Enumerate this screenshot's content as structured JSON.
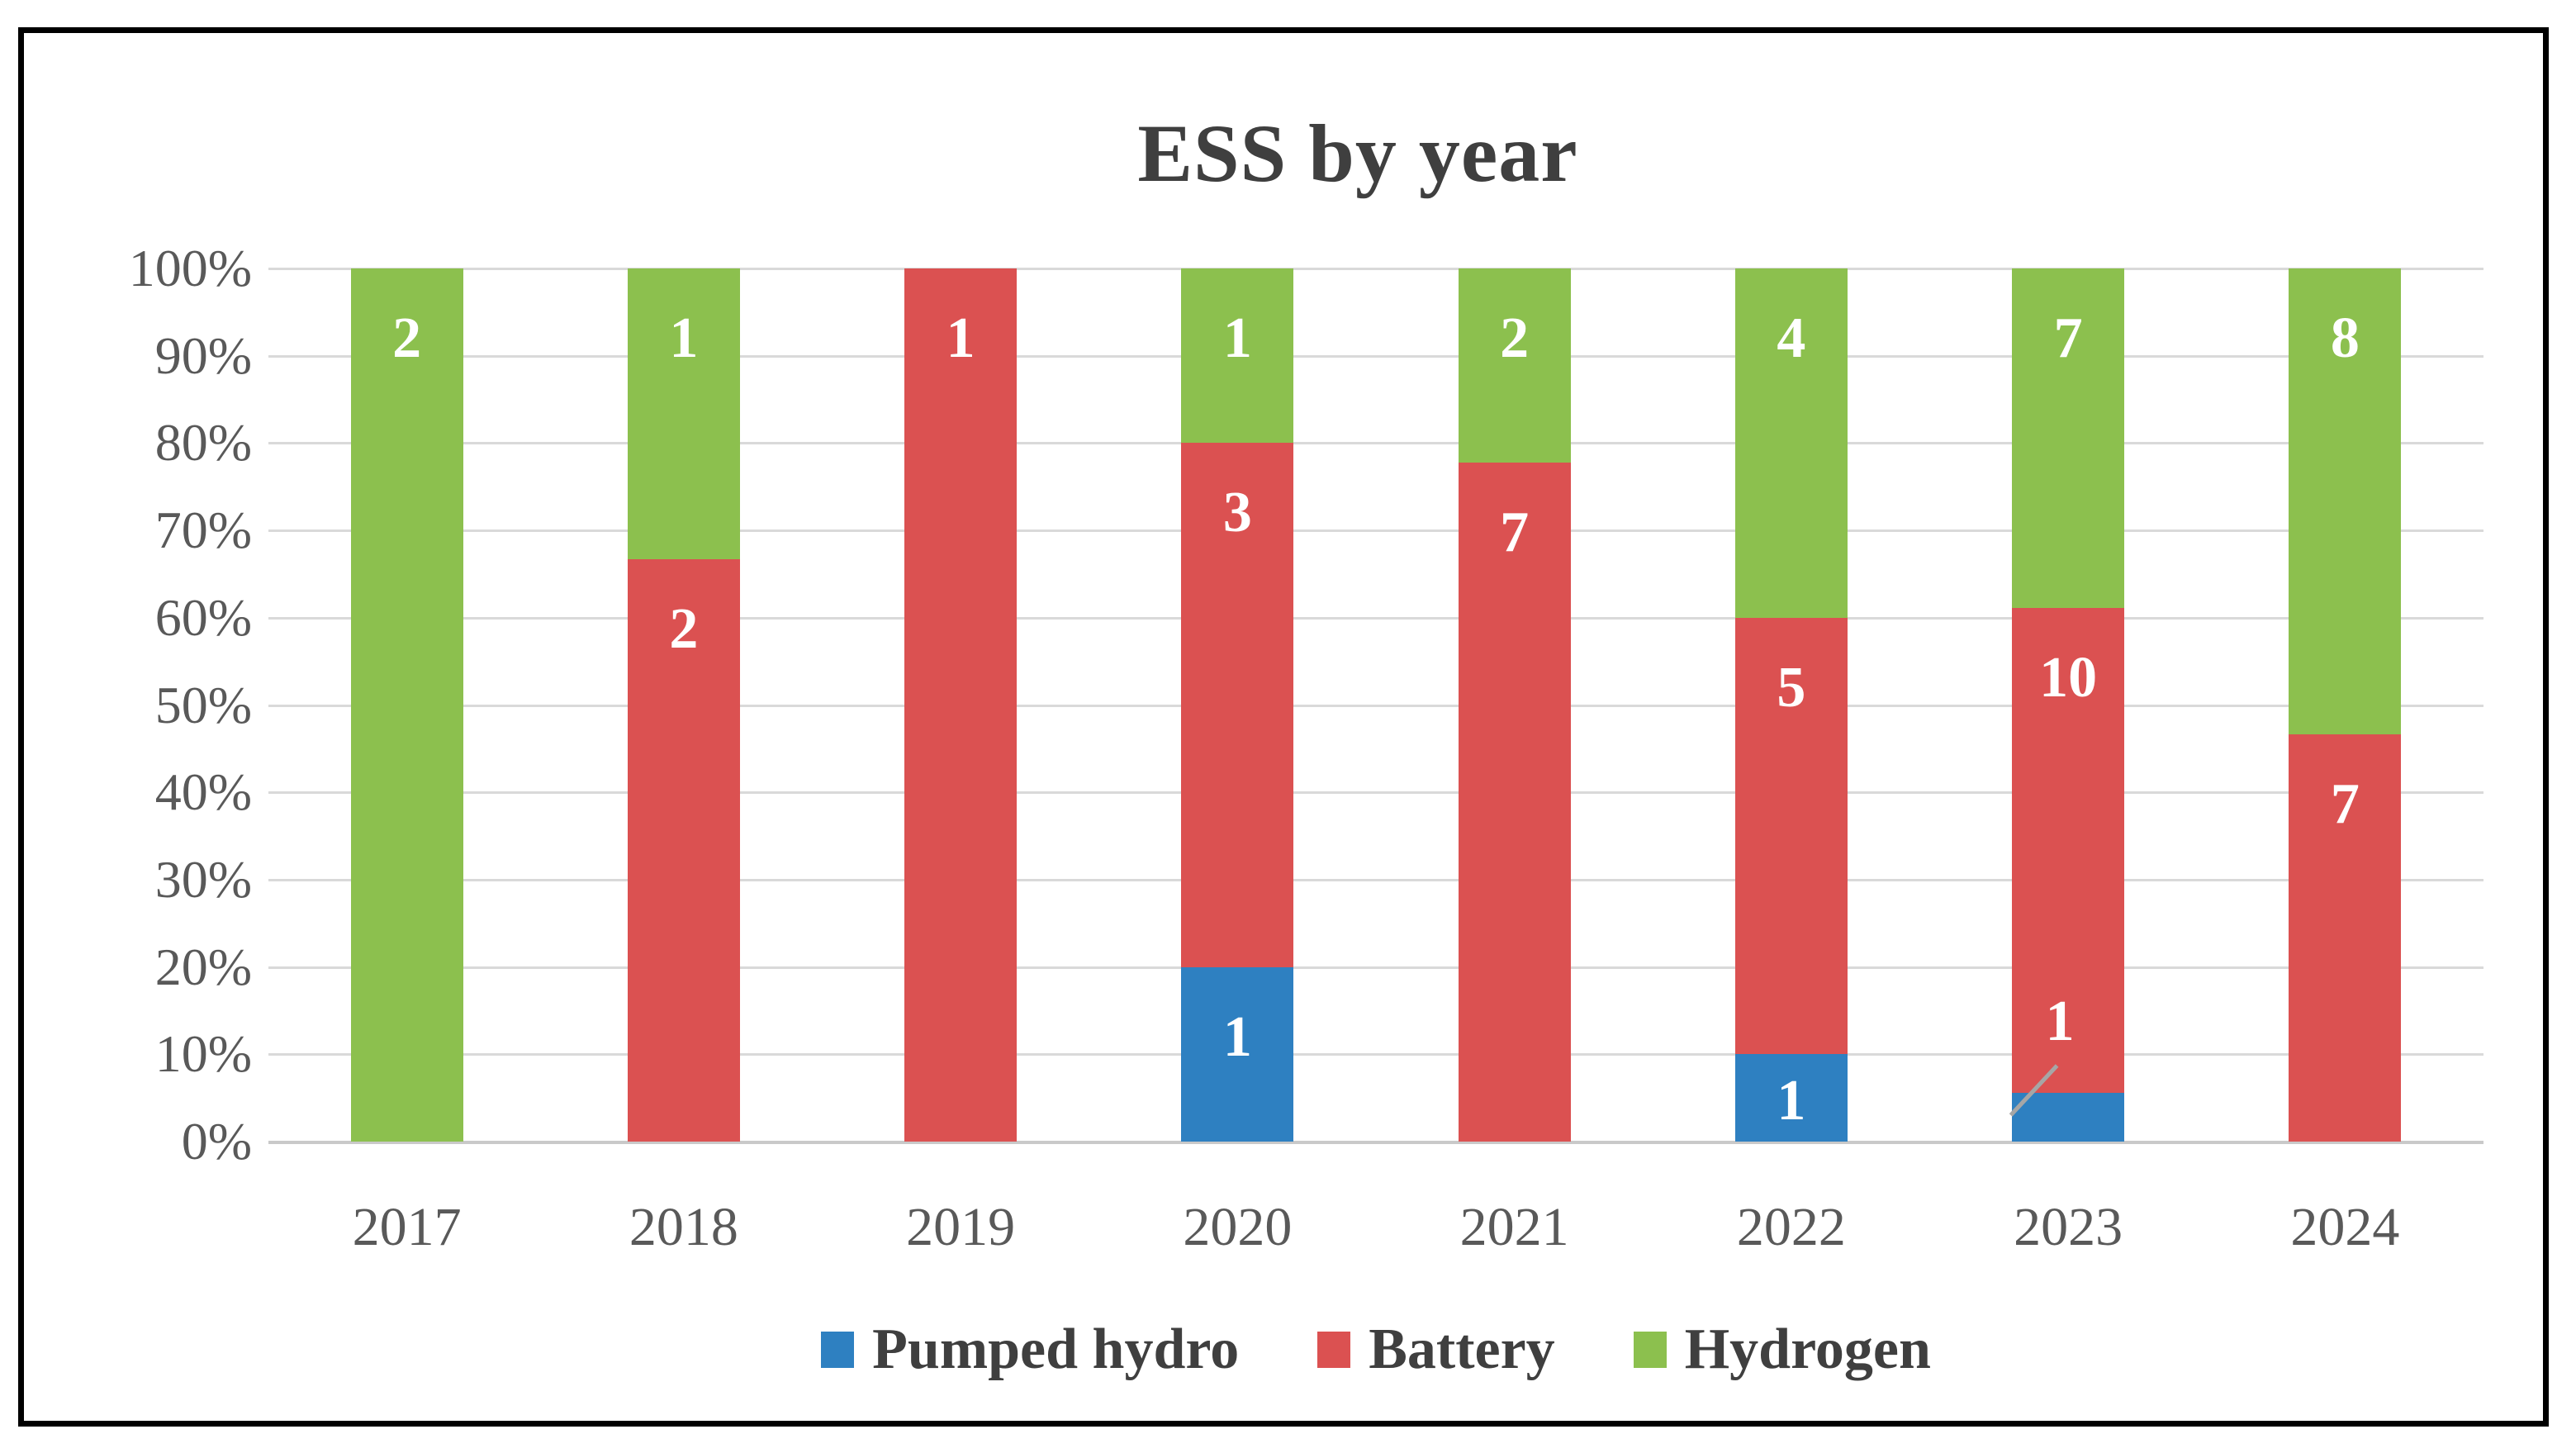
{
  "styles": {
    "frame_border": "#000000",
    "gridline": "#D9D9D9",
    "axis_line": "#C9C9C9",
    "title_text": "#3F3F3F",
    "tick_text": "#595959",
    "data_label_text": "#FFFFFF",
    "leader_line": "#A6A6A6",
    "background": "#FFFFFF"
  },
  "chart_data": {
    "type": "bar",
    "subtype": "stacked-100-percent-column",
    "title": "ESS by year",
    "categories": [
      "2017",
      "2018",
      "2019",
      "2020",
      "2021",
      "2022",
      "2023",
      "2024"
    ],
    "series": [
      {
        "name": "Pumped hydro",
        "color": "#2E80C1",
        "values": [
          0,
          0,
          0,
          1,
          0,
          1,
          1,
          0
        ]
      },
      {
        "name": "Battery",
        "color": "#DB5151",
        "values": [
          0,
          2,
          1,
          3,
          7,
          5,
          10,
          7
        ]
      },
      {
        "name": "Hydrogen",
        "color": "#8CC04E",
        "values": [
          2,
          1,
          0,
          1,
          2,
          4,
          7,
          8
        ]
      }
    ],
    "y_axis": {
      "ticks": [
        "100%",
        "90%",
        "80%",
        "70%",
        "60%",
        "50%",
        "40%",
        "30%",
        "20%",
        "10%",
        "0%"
      ],
      "min": 0,
      "max": 100,
      "unit": "percent"
    },
    "xlabel": "",
    "ylabel": "",
    "grid": true,
    "legend_position": "bottom",
    "data_labels": "segment counts, white, inside end",
    "leader_label": {
      "category": "2023",
      "series": "Pumped hydro"
    }
  }
}
